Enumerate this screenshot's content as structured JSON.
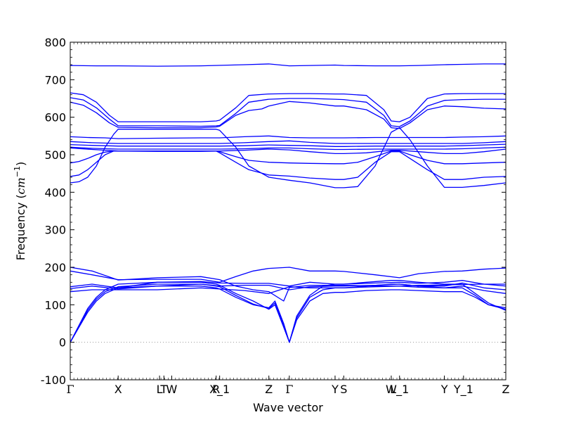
{
  "chart_data": {
    "type": "line",
    "title": "",
    "xlabel": "Wave vector",
    "ylabel_prefix": "Frequency (",
    "ylabel_unit": "cm",
    "ylabel_exp": "−1",
    "ylabel_suffix": ")",
    "ylim": [
      -100,
      800
    ],
    "xlim": [
      0,
      1
    ],
    "yticks": [
      -100,
      0,
      100,
      200,
      300,
      400,
      500,
      600,
      700,
      800
    ],
    "grid": false,
    "line_color": "#0000ff",
    "zero_line_color": "#999999",
    "kpoints": [
      {
        "label": "Γ",
        "x": 0.0
      },
      {
        "label": "X",
        "x": 0.11
      },
      {
        "label": "L",
        "x": 0.205
      },
      {
        "label": "T",
        "x": 0.215
      },
      {
        "label": "W",
        "x": 0.233
      },
      {
        "label": "R",
        "x": 0.335
      },
      {
        "label": "X_1",
        "x": 0.343
      },
      {
        "label": "Z",
        "x": 0.456
      },
      {
        "label": "Γ",
        "x": 0.503
      },
      {
        "label": "Y",
        "x": 0.608
      },
      {
        "label": "S",
        "x": 0.628
      },
      {
        "label": "W",
        "x": 0.737
      },
      {
        "label": "L_1",
        "x": 0.756
      },
      {
        "label": "Y",
        "x": 0.859
      },
      {
        "label": "Y_1",
        "x": 0.903
      },
      {
        "label": "Z",
        "x": 1.0
      }
    ],
    "series": [
      {
        "x": [
          0,
          0.06,
          0.11,
          0.2,
          0.3,
          0.4,
          0.456,
          0.503,
          0.55,
          0.608,
          0.628,
          0.7,
          0.756,
          0.8,
          0.859,
          0.9,
          0.95,
          1.0
        ],
        "y": [
          738,
          737,
          737,
          736,
          737,
          740,
          742,
          737,
          738,
          739,
          738,
          737,
          737,
          738,
          740,
          741,
          742,
          742
        ]
      },
      {
        "x": [
          0,
          0.03,
          0.06,
          0.09,
          0.11,
          0.2,
          0.3,
          0.335,
          0.343,
          0.38,
          0.41,
          0.456,
          0.503,
          0.55,
          0.608,
          0.628,
          0.68,
          0.72,
          0.737,
          0.756,
          0.78,
          0.82,
          0.859,
          0.9,
          0.95,
          1.0
        ],
        "y": [
          665,
          660,
          640,
          605,
          588,
          588,
          588,
          590,
          592,
          625,
          658,
          662,
          663,
          663,
          662,
          662,
          658,
          620,
          590,
          588,
          600,
          650,
          662,
          663,
          663,
          663
        ]
      },
      {
        "x": [
          0,
          0.03,
          0.06,
          0.09,
          0.11,
          0.2,
          0.3,
          0.335,
          0.343,
          0.38,
          0.41,
          0.456,
          0.503,
          0.55,
          0.608,
          0.628,
          0.68,
          0.72,
          0.737,
          0.756,
          0.78,
          0.82,
          0.859,
          0.9,
          0.95,
          1.0
        ],
        "y": [
          652,
          646,
          625,
          595,
          577,
          577,
          576,
          577,
          578,
          610,
          640,
          648,
          650,
          650,
          648,
          647,
          640,
          605,
          577,
          575,
          590,
          630,
          645,
          647,
          648,
          648
        ]
      },
      {
        "x": [
          0,
          0.03,
          0.06,
          0.09,
          0.11,
          0.2,
          0.3,
          0.335,
          0.343,
          0.38,
          0.41,
          0.44,
          0.456,
          0.503,
          0.55,
          0.608,
          0.628,
          0.68,
          0.72,
          0.737,
          0.756,
          0.78,
          0.82,
          0.859,
          0.9,
          0.95,
          1.0
        ],
        "y": [
          640,
          632,
          612,
          585,
          573,
          572,
          572,
          574,
          576,
          605,
          618,
          622,
          630,
          642,
          638,
          630,
          630,
          620,
          595,
          572,
          570,
          585,
          620,
          630,
          628,
          624,
          622
        ]
      },
      {
        "x": [
          0,
          0.04,
          0.08,
          0.11,
          0.2,
          0.3,
          0.343,
          0.4,
          0.456,
          0.503,
          0.55,
          0.608,
          0.628,
          0.7,
          0.756,
          0.8,
          0.859,
          0.9,
          0.95,
          1.0
        ],
        "y": [
          548,
          546,
          545,
          543,
          544,
          545,
          545,
          548,
          550,
          546,
          545,
          545,
          545,
          546,
          546,
          546,
          546,
          547,
          548,
          550
        ]
      },
      {
        "x": [
          0,
          0.02,
          0.04,
          0.06,
          0.08,
          0.1,
          0.11,
          0.2,
          0.3,
          0.335,
          0.343,
          0.38,
          0.41,
          0.456,
          0.503,
          0.55,
          0.608,
          0.628,
          0.66,
          0.7,
          0.737,
          0.756,
          0.78,
          0.82,
          0.859,
          0.9,
          0.95,
          1.0
        ],
        "y": [
          425,
          428,
          440,
          470,
          520,
          555,
          568,
          568,
          568,
          568,
          565,
          520,
          470,
          440,
          432,
          425,
          412,
          412,
          415,
          470,
          560,
          572,
          540,
          470,
          413,
          413,
          418,
          425
        ]
      },
      {
        "x": [
          0,
          0.02,
          0.04,
          0.06,
          0.08,
          0.1,
          0.11,
          0.2,
          0.3,
          0.335,
          0.343,
          0.38,
          0.41,
          0.456,
          0.503,
          0.55,
          0.608,
          0.628,
          0.66,
          0.7,
          0.737,
          0.756,
          0.78,
          0.82,
          0.859,
          0.9,
          0.95,
          1.0
        ],
        "y": [
          442,
          446,
          460,
          480,
          500,
          510,
          510,
          510,
          510,
          510,
          505,
          480,
          460,
          446,
          443,
          438,
          434,
          434,
          440,
          480,
          508,
          508,
          490,
          460,
          434,
          434,
          440,
          442
        ]
      },
      {
        "x": [
          0,
          0.02,
          0.04,
          0.06,
          0.08,
          0.1,
          0.11,
          0.2,
          0.3,
          0.335,
          0.343,
          0.38,
          0.41,
          0.456,
          0.503,
          0.55,
          0.608,
          0.628,
          0.66,
          0.7,
          0.737,
          0.756,
          0.78,
          0.82,
          0.859,
          0.9,
          0.95,
          1.0
        ],
        "y": [
          478,
          482,
          490,
          500,
          507,
          510,
          510,
          510,
          510,
          510,
          508,
          495,
          485,
          480,
          478,
          477,
          476,
          476,
          480,
          495,
          510,
          510,
          500,
          485,
          476,
          476,
          478,
          480
        ]
      },
      {
        "x": [
          0,
          0.05,
          0.11,
          0.2,
          0.3,
          0.343,
          0.4,
          0.456,
          0.503,
          0.55,
          0.608,
          0.628,
          0.7,
          0.756,
          0.8,
          0.859,
          0.9,
          0.95,
          1.0
        ],
        "y": [
          535,
          532,
          530,
          530,
          530,
          530,
          532,
          535,
          537,
          533,
          530,
          530,
          530,
          530,
          530,
          530,
          530,
          532,
          535
        ]
      },
      {
        "x": [
          0,
          0.05,
          0.11,
          0.2,
          0.3,
          0.343,
          0.4,
          0.456,
          0.503,
          0.55,
          0.608,
          0.628,
          0.7,
          0.756,
          0.8,
          0.859,
          0.9,
          0.95,
          1.0
        ],
        "y": [
          527,
          525,
          523,
          523,
          523,
          523,
          524,
          526,
          525,
          524,
          522,
          522,
          523,
          523,
          523,
          523,
          524,
          526,
          528
        ]
      },
      {
        "x": [
          0,
          0.05,
          0.11,
          0.2,
          0.3,
          0.343,
          0.4,
          0.456,
          0.503,
          0.55,
          0.608,
          0.628,
          0.7,
          0.756,
          0.8,
          0.859,
          0.9,
          0.95,
          1.0
        ],
        "y": [
          520,
          517,
          515,
          515,
          515,
          515,
          516,
          518,
          518,
          516,
          514,
          514,
          515,
          515,
          515,
          515,
          516,
          518,
          520
        ]
      },
      {
        "x": [
          0,
          0.05,
          0.11,
          0.2,
          0.3,
          0.343,
          0.4,
          0.456,
          0.503,
          0.55,
          0.608,
          0.628,
          0.68,
          0.737,
          0.756,
          0.8,
          0.859,
          0.9,
          0.95,
          1.0
        ],
        "y": [
          518,
          514,
          510,
          509,
          509,
          510,
          512,
          515,
          513,
          508,
          503,
          503,
          505,
          512,
          512,
          508,
          503,
          503,
          508,
          515
        ]
      },
      {
        "x": [
          0,
          0.05,
          0.11,
          0.2,
          0.3,
          0.343,
          0.38,
          0.42,
          0.456,
          0.49,
          0.503,
          0.55,
          0.608,
          0.628,
          0.7,
          0.756,
          0.8,
          0.859,
          0.9,
          0.95,
          1.0
        ],
        "y": [
          200,
          190,
          166,
          172,
          175,
          167,
          150,
          140,
          135,
          110,
          146,
          152,
          152,
          152,
          150,
          150,
          152,
          153,
          154,
          155,
          155
        ]
      },
      {
        "x": [
          0,
          0.05,
          0.11,
          0.2,
          0.3,
          0.343,
          0.38,
          0.42,
          0.456,
          0.503,
          0.55,
          0.608,
          0.628,
          0.7,
          0.756,
          0.8,
          0.859,
          0.9,
          0.95,
          1.0
        ],
        "y": [
          190,
          180,
          167,
          168,
          168,
          160,
          175,
          190,
          197,
          200,
          190,
          190,
          189,
          180,
          172,
          183,
          189,
          190,
          195,
          198
        ]
      },
      {
        "x": [
          0,
          0.05,
          0.11,
          0.2,
          0.3,
          0.343,
          0.4,
          0.456,
          0.503,
          0.55,
          0.608,
          0.628,
          0.7,
          0.756,
          0.8,
          0.859,
          0.9,
          0.95,
          1.0
        ],
        "y": [
          148,
          155,
          145,
          160,
          162,
          158,
          157,
          157,
          150,
          160,
          155,
          155,
          158,
          160,
          157,
          160,
          165,
          155,
          150
        ]
      },
      {
        "x": [
          0,
          0.05,
          0.11,
          0.2,
          0.3,
          0.343,
          0.4,
          0.456,
          0.503,
          0.55,
          0.608,
          0.628,
          0.7,
          0.756,
          0.8,
          0.859,
          0.9,
          0.95,
          1.0
        ],
        "y": [
          143,
          150,
          142,
          150,
          155,
          150,
          152,
          152,
          140,
          148,
          150,
          150,
          152,
          155,
          150,
          150,
          158,
          145,
          140
        ]
      },
      {
        "x": [
          0,
          0.05,
          0.11,
          0.2,
          0.3,
          0.343,
          0.4,
          0.456,
          0.503,
          0.55,
          0.608,
          0.628,
          0.7,
          0.756,
          0.8,
          0.859,
          0.9,
          0.95,
          1.0
        ],
        "y": [
          135,
          140,
          140,
          140,
          145,
          142,
          138,
          130,
          148,
          145,
          145,
          145,
          148,
          150,
          147,
          145,
          150,
          138,
          130
        ]
      },
      {
        "x": [
          0,
          0.02,
          0.04,
          0.06,
          0.08,
          0.11,
          0.2,
          0.3,
          0.335,
          0.343,
          0.38,
          0.42,
          0.456,
          0.47,
          0.49,
          0.503,
          0.52,
          0.55,
          0.58,
          0.608,
          0.628,
          0.68,
          0.737,
          0.756,
          0.8,
          0.859,
          0.9,
          0.93,
          0.96,
          1.0
        ],
        "y": [
          0,
          40,
          80,
          110,
          130,
          145,
          150,
          150,
          145,
          142,
          120,
          100,
          92,
          110,
          50,
          0,
          60,
          110,
          130,
          133,
          133,
          138,
          140,
          140,
          138,
          135,
          135,
          120,
          100,
          88
        ]
      },
      {
        "x": [
          0,
          0.02,
          0.04,
          0.06,
          0.08,
          0.11,
          0.2,
          0.3,
          0.335,
          0.343,
          0.38,
          0.42,
          0.456,
          0.47,
          0.49,
          0.503,
          0.52,
          0.55,
          0.58,
          0.608,
          0.628,
          0.68,
          0.737,
          0.756,
          0.8,
          0.859,
          0.9,
          0.93,
          0.96,
          1.0
        ],
        "y": [
          0,
          42,
          85,
          115,
          135,
          148,
          155,
          155,
          150,
          148,
          125,
          102,
          90,
          105,
          45,
          0,
          65,
          120,
          140,
          145,
          145,
          150,
          155,
          155,
          150,
          145,
          145,
          125,
          100,
          92
        ]
      },
      {
        "x": [
          0,
          0.02,
          0.04,
          0.06,
          0.08,
          0.11,
          0.2,
          0.3,
          0.335,
          0.343,
          0.38,
          0.42,
          0.456,
          0.47,
          0.49,
          0.503,
          0.52,
          0.55,
          0.58,
          0.608,
          0.628,
          0.68,
          0.737,
          0.756,
          0.8,
          0.859,
          0.9,
          0.93,
          0.96,
          1.0
        ],
        "y": [
          0,
          45,
          90,
          120,
          140,
          155,
          160,
          160,
          155,
          152,
          130,
          110,
          88,
          100,
          40,
          0,
          70,
          125,
          150,
          155,
          155,
          160,
          165,
          165,
          160,
          155,
          155,
          130,
          105,
          85
        ]
      }
    ]
  }
}
